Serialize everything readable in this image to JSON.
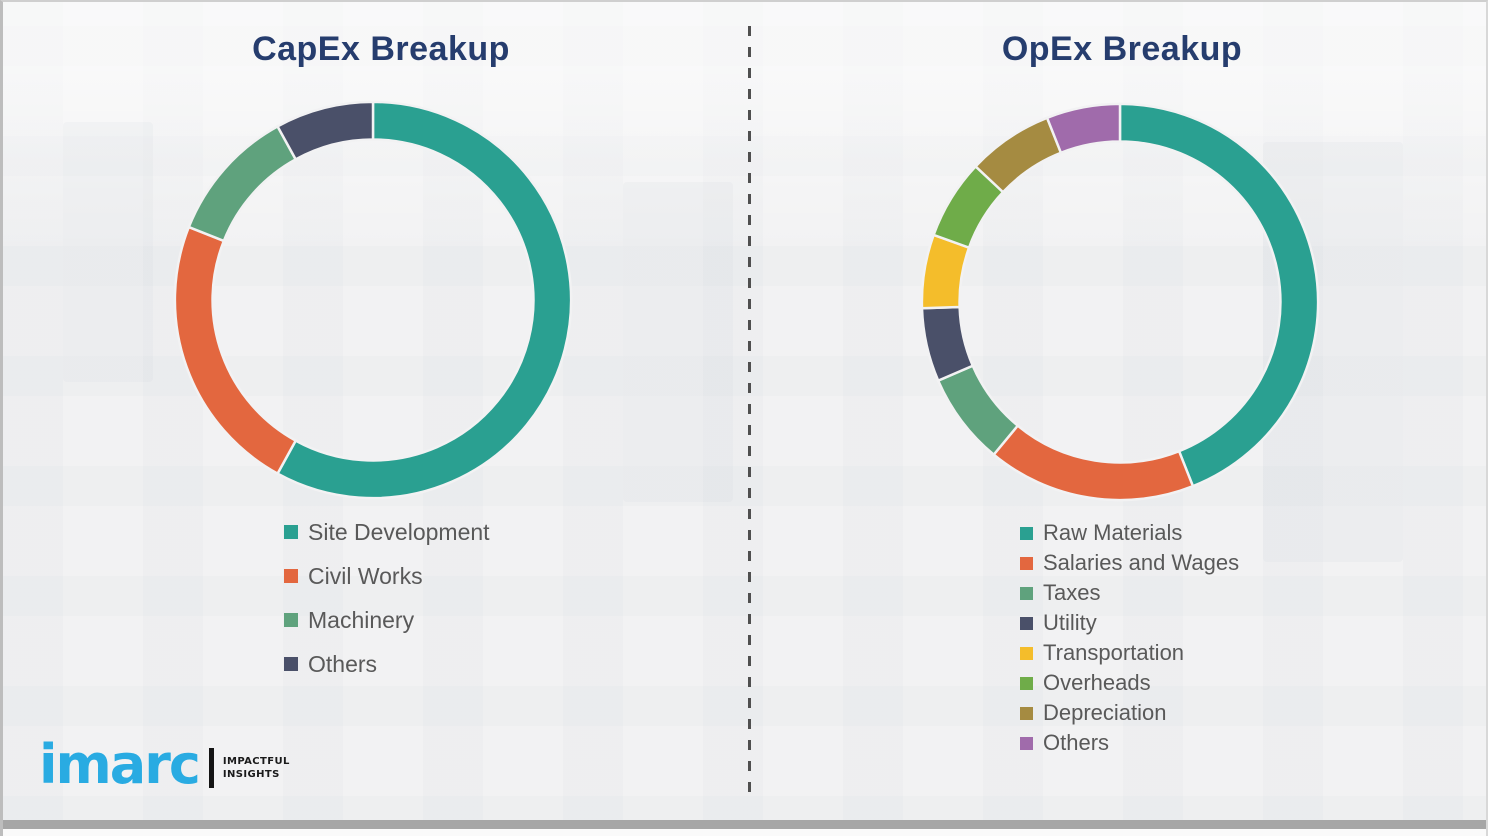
{
  "slide": {
    "background_color": "#f2f2f3",
    "title_color": "#263d6e",
    "legend_text_color": "#595959",
    "divider_style": "vertical-dashed",
    "divider_color": "#4f4f4f"
  },
  "chart_data": [
    {
      "type": "pie",
      "subtype": "donut",
      "title": "CapEx Breakup",
      "categories": [
        "Site Development",
        "Civil Works",
        "Machinery",
        "Others"
      ],
      "values": [
        58,
        23,
        11,
        8
      ],
      "colors": [
        "#2aa091",
        "#e3673f",
        "#5fa27d",
        "#4a5069"
      ],
      "unit": "percent-estimated",
      "start_angle_deg": 0,
      "direction": "clockwise",
      "legend_position": "below-left",
      "data_labels": false
    },
    {
      "type": "pie",
      "subtype": "donut",
      "title": "OpEx Breakup",
      "categories": [
        "Raw Materials",
        "Salaries and Wages",
        "Taxes",
        "Utility",
        "Transportation",
        "Overheads",
        "Depreciation",
        "Others"
      ],
      "values": [
        44,
        17,
        7.5,
        6,
        6,
        6.5,
        7,
        6
      ],
      "colors": [
        "#2aa091",
        "#e3673f",
        "#5fa27d",
        "#4a5069",
        "#f4bd2b",
        "#6fac49",
        "#a58b41",
        "#a06bab"
      ],
      "unit": "percent-estimated",
      "start_angle_deg": 0,
      "direction": "clockwise",
      "legend_position": "below-left",
      "data_labels": false
    }
  ],
  "logo": {
    "brand": "imarc",
    "brand_color": "#29abe2",
    "tagline_line1": "IMPACTFUL",
    "tagline_line2": "INSIGHTS"
  }
}
